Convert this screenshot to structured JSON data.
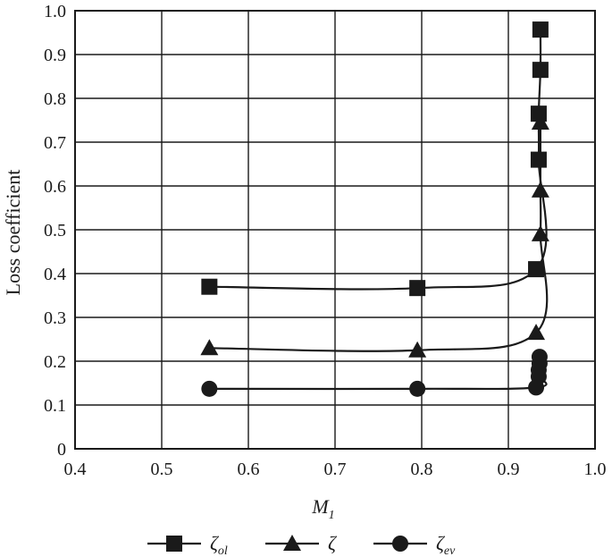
{
  "chart_data": {
    "type": "line",
    "xlabel": "M",
    "xlabel_sub": "1",
    "ylabel": "Loss coefficient",
    "xlim": [
      0.4,
      1.0
    ],
    "ylim": [
      0,
      1.0
    ],
    "xticks": [
      "0.4",
      "0.5",
      "0.6",
      "0.7",
      "0.8",
      "0.9",
      "1.0"
    ],
    "yticks": [
      "0",
      "0.1",
      "0.2",
      "0.3",
      "0.4",
      "0.5",
      "0.6",
      "0.7",
      "0.8",
      "0.9",
      "1.0"
    ],
    "grid": true,
    "legend_position": "bottom",
    "series": [
      {
        "name": "ζ",
        "name_sub": "ol",
        "marker": "square",
        "x": [
          0.555,
          0.795,
          0.932,
          0.935,
          0.935,
          0.937,
          0.937
        ],
        "y": [
          0.37,
          0.367,
          0.41,
          0.66,
          0.765,
          0.865,
          0.957
        ]
      },
      {
        "name": "ζ",
        "name_sub": "",
        "marker": "triangle",
        "x": [
          0.555,
          0.795,
          0.932,
          0.937,
          0.937,
          0.937
        ],
        "y": [
          0.23,
          0.225,
          0.265,
          0.49,
          0.59,
          0.745
        ]
      },
      {
        "name": "ζ",
        "name_sub": "ev",
        "marker": "circle",
        "x": [
          0.555,
          0.795,
          0.932,
          0.935,
          0.935,
          0.936,
          0.936
        ],
        "y": [
          0.137,
          0.137,
          0.14,
          0.165,
          0.18,
          0.195,
          0.21
        ]
      }
    ]
  }
}
